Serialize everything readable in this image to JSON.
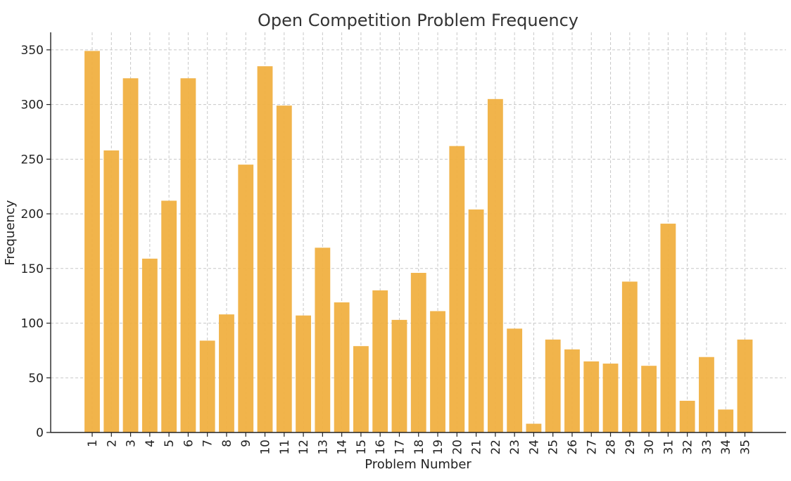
{
  "chart_data": {
    "type": "bar",
    "title": "Open Competition Problem Frequency",
    "xlabel": "Problem Number",
    "ylabel": "Frequency",
    "categories": [
      "1",
      "2",
      "3",
      "4",
      "5",
      "6",
      "7",
      "8",
      "9",
      "10",
      "11",
      "12",
      "13",
      "14",
      "15",
      "16",
      "17",
      "18",
      "19",
      "20",
      "21",
      "22",
      "23",
      "24",
      "25",
      "26",
      "27",
      "28",
      "29",
      "30",
      "31",
      "32",
      "33",
      "34",
      "35"
    ],
    "values": [
      349,
      258,
      324,
      159,
      212,
      324,
      84,
      108,
      245,
      335,
      299,
      107,
      169,
      119,
      79,
      130,
      103,
      146,
      111,
      262,
      204,
      305,
      95,
      8,
      85,
      76,
      65,
      63,
      138,
      61,
      191,
      29,
      69,
      21,
      85
    ],
    "ylim": [
      0,
      366
    ],
    "yticks": [
      0,
      50,
      100,
      150,
      200,
      250,
      300,
      350
    ],
    "grid": true,
    "bar_color": "#f0b041"
  }
}
